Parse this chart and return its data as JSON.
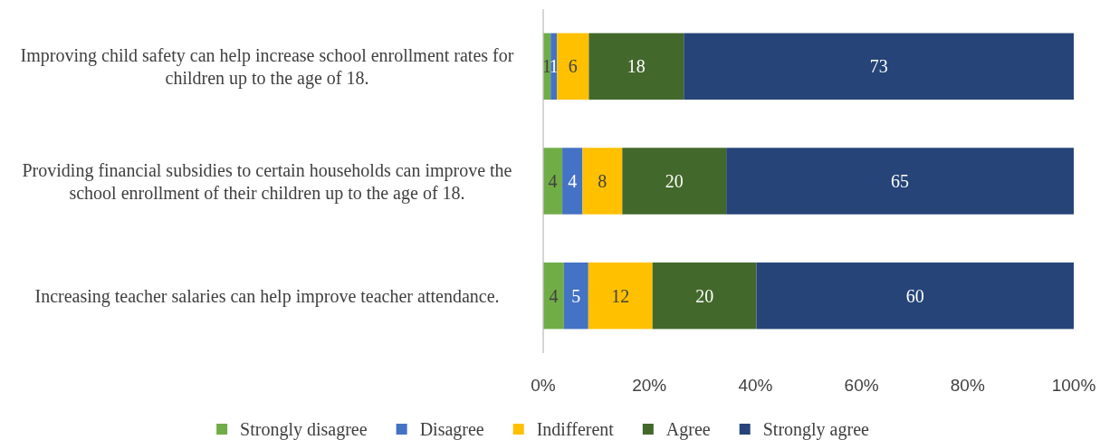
{
  "chart_data": {
    "type": "bar",
    "orientation": "horizontal",
    "stacked": true,
    "categories": [
      "Improving child safety can help increase school enrollment rates for children up to the age of 18.",
      "Providing financial subsidies to certain households can improve the school enrollment of their children up to the age of 18.",
      "Increasing teacher salaries can help improve teacher attendance."
    ],
    "series": [
      {
        "name": "Strongly disagree",
        "color": "#70ad47",
        "values": [
          1.4,
          3.6,
          3.9
        ],
        "value_labels": [
          "1",
          "4",
          "4"
        ]
      },
      {
        "name": "Disagree",
        "color": "#4472c4",
        "values": [
          1.2,
          3.8,
          4.6
        ],
        "value_labels": [
          "1",
          "4",
          "5"
        ]
      },
      {
        "name": "Indifferent",
        "color": "#ffc000",
        "values": [
          6.0,
          7.5,
          12.1
        ],
        "value_labels": [
          "6",
          "8",
          "12"
        ]
      },
      {
        "name": "Agree",
        "color": "#43682b",
        "values": [
          17.9,
          19.6,
          19.6
        ],
        "value_labels": [
          "18",
          "20",
          "20"
        ]
      },
      {
        "name": "Strongly agree",
        "color": "#264478",
        "values": [
          73.5,
          65.5,
          59.8
        ],
        "value_labels": [
          "73",
          "65",
          "60"
        ]
      }
    ],
    "xlim": [
      0,
      100
    ],
    "xticks": [
      {
        "value": 0,
        "label": "0%"
      },
      {
        "value": 20,
        "label": "20%"
      },
      {
        "value": 40,
        "label": "40%"
      },
      {
        "value": 60,
        "label": "60%"
      },
      {
        "value": 80,
        "label": "80%"
      },
      {
        "value": 100,
        "label": "100%"
      }
    ],
    "legend": "bottom",
    "grid": false
  }
}
